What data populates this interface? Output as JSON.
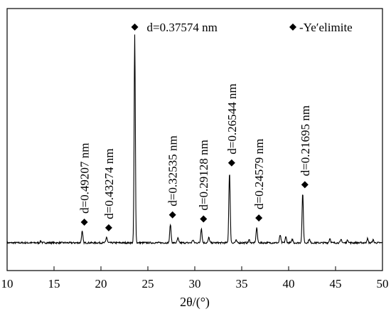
{
  "chart_data": {
    "type": "line",
    "xlabel": "2θ/(°)",
    "ylabel": "",
    "xlim": [
      10,
      50
    ],
    "xticks": [
      "10",
      "15",
      "20",
      "25",
      "30",
      "35",
      "40",
      "45",
      "50"
    ],
    "y_ticks_shown": false,
    "grid": false,
    "legend": {
      "marker": "diamond",
      "label": "-Ye′elimite",
      "placement": "top-right"
    },
    "peaks": [
      {
        "x": 18.0,
        "intensity": 0.055,
        "label": "d=0.49207 nm",
        "marked": true
      },
      {
        "x": 20.6,
        "intensity": 0.028,
        "label": "d=0.43274 nm",
        "marked": true
      },
      {
        "x": 23.6,
        "intensity": 1.0,
        "label": "d=0.37574 nm",
        "marked": true
      },
      {
        "x": 27.4,
        "intensity": 0.09,
        "label": "d=0.32535 nm",
        "marked": true
      },
      {
        "x": 30.7,
        "intensity": 0.07,
        "label": "d=0.29128 nm",
        "marked": true
      },
      {
        "x": 33.7,
        "intensity": 0.34,
        "label": "d=0.26544 nm",
        "marked": true
      },
      {
        "x": 36.6,
        "intensity": 0.075,
        "label": "d=0.24579 nm",
        "marked": true
      },
      {
        "x": 41.5,
        "intensity": 0.235,
        "label": "d=0.21695 nm",
        "marked": true
      }
    ],
    "minor_peaks": [
      {
        "x": 13.6,
        "intensity": 0.008
      },
      {
        "x": 28.2,
        "intensity": 0.022
      },
      {
        "x": 29.8,
        "intensity": 0.014
      },
      {
        "x": 31.5,
        "intensity": 0.025
      },
      {
        "x": 34.4,
        "intensity": 0.012
      },
      {
        "x": 35.8,
        "intensity": 0.014
      },
      {
        "x": 39.1,
        "intensity": 0.038
      },
      {
        "x": 39.7,
        "intensity": 0.028
      },
      {
        "x": 40.4,
        "intensity": 0.016
      },
      {
        "x": 42.2,
        "intensity": 0.018
      },
      {
        "x": 44.4,
        "intensity": 0.022
      },
      {
        "x": 45.6,
        "intensity": 0.016
      },
      {
        "x": 46.3,
        "intensity": 0.014
      },
      {
        "x": 48.4,
        "intensity": 0.02
      },
      {
        "x": 49.0,
        "intensity": 0.014
      }
    ],
    "colors": {
      "line": "#000000",
      "marker": "#000000",
      "background": "#ffffff"
    }
  }
}
